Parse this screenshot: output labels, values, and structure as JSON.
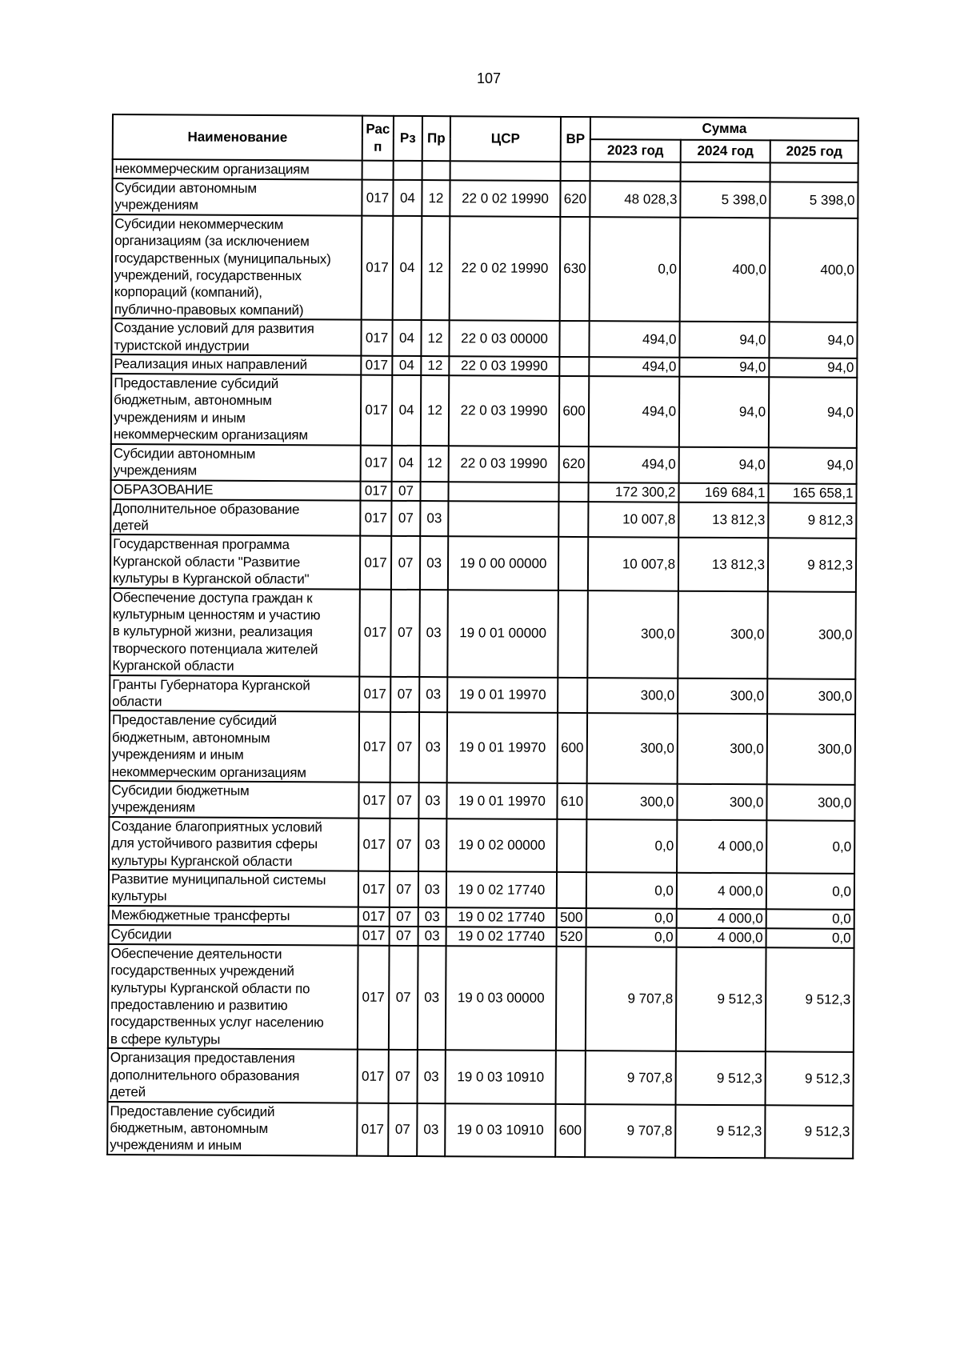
{
  "page_number": "107",
  "header": {
    "name": "Наименование",
    "rasp": "Рас\nп",
    "rz": "Рз",
    "pr": "Пр",
    "csr": "ЦСР",
    "vr": "ВР",
    "summa": "Сумма",
    "y2023": "2023 год",
    "y2024": "2024 год",
    "y2025": "2025 год"
  },
  "rows": [
    {
      "name": "некоммерческим организациям",
      "rasp": "",
      "rz": "",
      "pr": "",
      "csr": "",
      "vr": "",
      "y2023": "",
      "y2024": "",
      "y2025": ""
    },
    {
      "name": "Субсидии автономным\nучреждениям",
      "rasp": "017",
      "rz": "04",
      "pr": "12",
      "csr": "22 0 02 19990",
      "vr": "620",
      "y2023": "48 028,3",
      "y2024": "5 398,0",
      "y2025": "5 398,0"
    },
    {
      "name": "Субсидии некоммерческим\nорганизациям (за исключением\nгосударственных (муниципальных)\nучреждений, государственных\nкорпораций (компаний),\nпублично-правовых компаний)",
      "rasp": "017",
      "rz": "04",
      "pr": "12",
      "csr": "22 0 02 19990",
      "vr": "630",
      "y2023": "0,0",
      "y2024": "400,0",
      "y2025": "400,0"
    },
    {
      "name": "Создание условий для развития\nтуристской индустрии",
      "rasp": "017",
      "rz": "04",
      "pr": "12",
      "csr": "22 0 03 00000",
      "vr": "",
      "y2023": "494,0",
      "y2024": "94,0",
      "y2025": "94,0"
    },
    {
      "name": "Реализация иных направлений",
      "rasp": "017",
      "rz": "04",
      "pr": "12",
      "csr": "22 0 03 19990",
      "vr": "",
      "y2023": "494,0",
      "y2024": "94,0",
      "y2025": "94,0"
    },
    {
      "name": "Предоставление субсидий\nбюджетным, автономным\nучреждениям и иным\nнекоммерческим организациям",
      "rasp": "017",
      "rz": "04",
      "pr": "12",
      "csr": "22 0 03 19990",
      "vr": "600",
      "y2023": "494,0",
      "y2024": "94,0",
      "y2025": "94,0"
    },
    {
      "name": "Субсидии автономным\nучреждениям",
      "rasp": "017",
      "rz": "04",
      "pr": "12",
      "csr": "22 0 03 19990",
      "vr": "620",
      "y2023": "494,0",
      "y2024": "94,0",
      "y2025": "94,0"
    },
    {
      "name": "ОБРАЗОВАНИЕ",
      "rasp": "017",
      "rz": "07",
      "pr": "",
      "csr": "",
      "vr": "",
      "y2023": "172 300,2",
      "y2024": "169 684,1",
      "y2025": "165 658,1"
    },
    {
      "name": "Дополнительное образование\nдетей",
      "rasp": "017",
      "rz": "07",
      "pr": "03",
      "csr": "",
      "vr": "",
      "y2023": "10 007,8",
      "y2024": "13 812,3",
      "y2025": "9 812,3"
    },
    {
      "name": "Государственная программа\nКурганской области \"Развитие\nкультуры в Курганской области\"",
      "rasp": "017",
      "rz": "07",
      "pr": "03",
      "csr": "19 0 00 00000",
      "vr": "",
      "y2023": "10 007,8",
      "y2024": "13 812,3",
      "y2025": "9 812,3"
    },
    {
      "name": "Обеспечение доступа граждан к\nкультурным ценностям и участию\nв культурной жизни, реализация\nтворческого потенциала жителей\nКурганской области",
      "rasp": "017",
      "rz": "07",
      "pr": "03",
      "csr": "19 0 01 00000",
      "vr": "",
      "y2023": "300,0",
      "y2024": "300,0",
      "y2025": "300,0"
    },
    {
      "name": "Гранты Губернатора Курганской\nобласти",
      "rasp": "017",
      "rz": "07",
      "pr": "03",
      "csr": "19 0 01 19970",
      "vr": "",
      "y2023": "300,0",
      "y2024": "300,0",
      "y2025": "300,0"
    },
    {
      "name": "Предоставление субсидий\nбюджетным, автономным\nучреждениям и иным\nнекоммерческим организациям",
      "rasp": "017",
      "rz": "07",
      "pr": "03",
      "csr": "19 0 01 19970",
      "vr": "600",
      "y2023": "300,0",
      "y2024": "300,0",
      "y2025": "300,0"
    },
    {
      "name": "Субсидии бюджетным\nучреждениям",
      "rasp": "017",
      "rz": "07",
      "pr": "03",
      "csr": "19 0 01 19970",
      "vr": "610",
      "y2023": "300,0",
      "y2024": "300,0",
      "y2025": "300,0"
    },
    {
      "name": "Создание благоприятных условий\nдля устойчивого развития сферы\nкультуры Курганской области",
      "rasp": "017",
      "rz": "07",
      "pr": "03",
      "csr": "19 0 02 00000",
      "vr": "",
      "y2023": "0,0",
      "y2024": "4 000,0",
      "y2025": "0,0"
    },
    {
      "name": "Развитие муниципальной системы\nкультуры",
      "rasp": "017",
      "rz": "07",
      "pr": "03",
      "csr": "19 0 02 17740",
      "vr": "",
      "y2023": "0,0",
      "y2024": "4 000,0",
      "y2025": "0,0"
    },
    {
      "name": "Межбюджетные трансферты",
      "rasp": "017",
      "rz": "07",
      "pr": "03",
      "csr": "19 0 02 17740",
      "vr": "500",
      "y2023": "0,0",
      "y2024": "4 000,0",
      "y2025": "0,0"
    },
    {
      "name": "Субсидии",
      "rasp": "017",
      "rz": "07",
      "pr": "03",
      "csr": "19 0 02 17740",
      "vr": "520",
      "y2023": "0,0",
      "y2024": "4 000,0",
      "y2025": "0,0"
    },
    {
      "name": "Обеспечение деятельности\nгосударственных учреждений\nкультуры Курганской области по\nпредоставлению и развитию\nгосударственных услуг населению\nв сфере культуры",
      "rasp": "017",
      "rz": "07",
      "pr": "03",
      "csr": "19 0 03 00000",
      "vr": "",
      "y2023": "9 707,8",
      "y2024": "9 512,3",
      "y2025": "9 512,3"
    },
    {
      "name": "Организация предоставления\nдополнительного образования\nдетей",
      "rasp": "017",
      "rz": "07",
      "pr": "03",
      "csr": "19 0 03 10910",
      "vr": "",
      "y2023": "9 707,8",
      "y2024": "9 512,3",
      "y2025": "9 512,3"
    },
    {
      "name": "Предоставление субсидий\nбюджетным, автономным\nучреждениям и иным",
      "rasp": "017",
      "rz": "07",
      "pr": "03",
      "csr": "19 0 03 10910",
      "vr": "600",
      "y2023": "9 707,8",
      "y2024": "9 512,3",
      "y2025": "9 512,3"
    }
  ]
}
